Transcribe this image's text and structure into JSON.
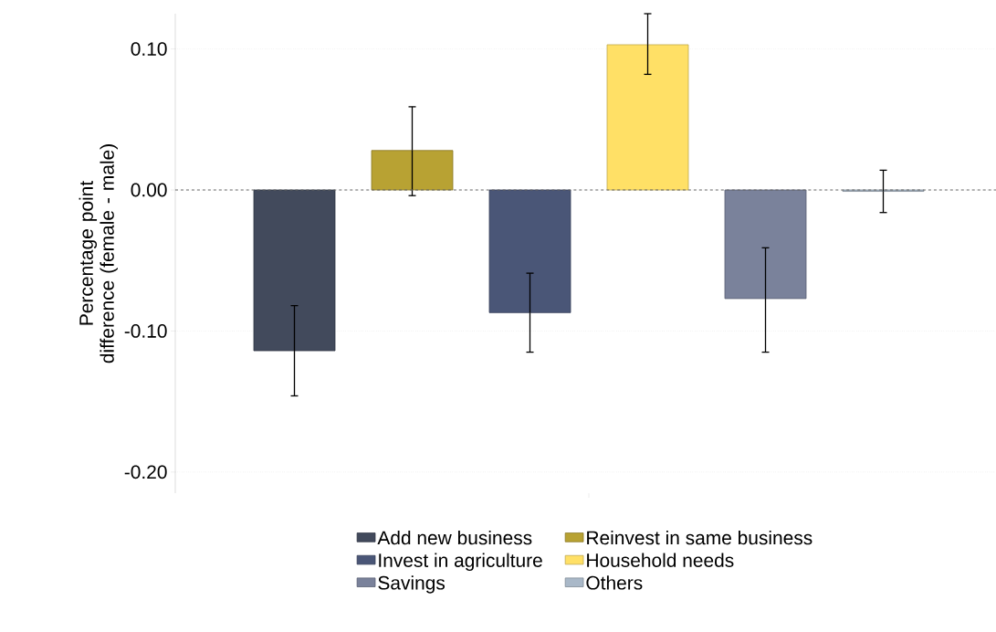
{
  "chart_data": {
    "type": "bar",
    "ylabel": "Percentage point difference (female - male)",
    "categories": [
      null
    ],
    "series": [
      {
        "name": "Add new business",
        "color": "#424a5c",
        "values": [
          -0.114
        ],
        "errors": [
          [
            -0.146,
            -0.082
          ]
        ]
      },
      {
        "name": "Reinvest in same business",
        "color": "#b8a233",
        "values": [
          0.028
        ],
        "errors": [
          [
            -0.004,
            0.059
          ]
        ]
      },
      {
        "name": "Invest in agriculture",
        "color": "#4a5677",
        "values": [
          -0.087
        ],
        "errors": [
          [
            -0.115,
            -0.059
          ]
        ]
      },
      {
        "name": "Household needs",
        "color": "#ffe066",
        "values": [
          0.103
        ],
        "errors": [
          [
            0.082,
            0.125
          ]
        ]
      },
      {
        "name": "Savings",
        "color": "#7a829b",
        "values": [
          -0.077
        ],
        "errors": [
          [
            -0.115,
            -0.041
          ]
        ]
      },
      {
        "name": "Others",
        "color": "#a9b8c8",
        "values": [
          -0.001
        ],
        "errors": [
          [
            -0.016,
            0.014
          ]
        ]
      }
    ],
    "ylim": [
      -0.215,
      0.125
    ],
    "yticks": [
      {
        "value": -0.2,
        "label": "-0.20"
      },
      {
        "value": -0.1,
        "label": "-0.10"
      },
      {
        "value": 0,
        "label": "0.00"
      },
      {
        "value": 0.1,
        "label": "0.10"
      }
    ],
    "grid": "y",
    "legend": "bottom",
    "ref_lines": [
      {
        "axis": "y",
        "value": 0,
        "line_style": "dashed",
        "color": "#666666"
      }
    ]
  }
}
